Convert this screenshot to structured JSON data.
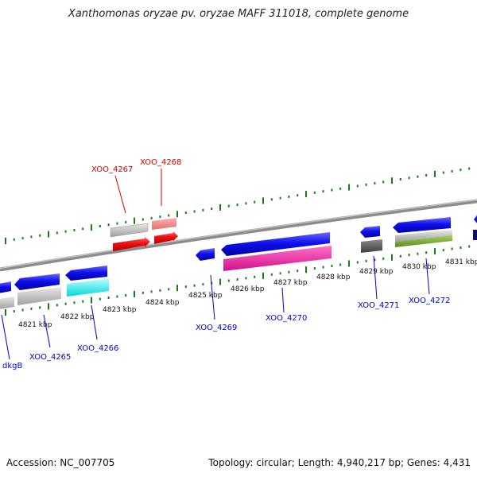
{
  "title": "Xanthomonas oryzae pv. oryzae MAFF 311018, complete genome",
  "footer": {
    "accession": "Accession: NC_007705",
    "stats": "Topology: circular; Length: 4,940,217 bp; Genes: 4,431"
  },
  "colors": {
    "background": "#ffffff",
    "backbone": "#8c8c8c",
    "tick": "#1a7a1a",
    "label_forward": "#cc0000",
    "label_reverse": "#0000cc"
  },
  "ticks": [
    "4821 kbp",
    "4822 kbp",
    "4823 kbp",
    "4824 kbp",
    "4825 kbp",
    "4826 kbp",
    "4827 kbp",
    "4828 kbp",
    "4829 kbp",
    "4830 kbp",
    "4831 kbp"
  ],
  "genes": [
    {
      "name": "XOO_4267",
      "strand": "forward",
      "color": "red"
    },
    {
      "name": "XOO_4268",
      "strand": "forward",
      "color": "red"
    },
    {
      "name": "dkgB",
      "strand": "reverse",
      "color": "blue"
    },
    {
      "name": "XOO_4265",
      "strand": "reverse",
      "color": "blue"
    },
    {
      "name": "XOO_4266",
      "strand": "reverse",
      "color": "blue"
    },
    {
      "name": "XOO_4269",
      "strand": "reverse",
      "color": "blue"
    },
    {
      "name": "XOO_4270",
      "strand": "reverse",
      "color": "blue"
    },
    {
      "name": "XOO_4271",
      "strand": "reverse",
      "color": "blue"
    },
    {
      "name": "XOO_4272",
      "strand": "reverse",
      "color": "blue"
    }
  ]
}
